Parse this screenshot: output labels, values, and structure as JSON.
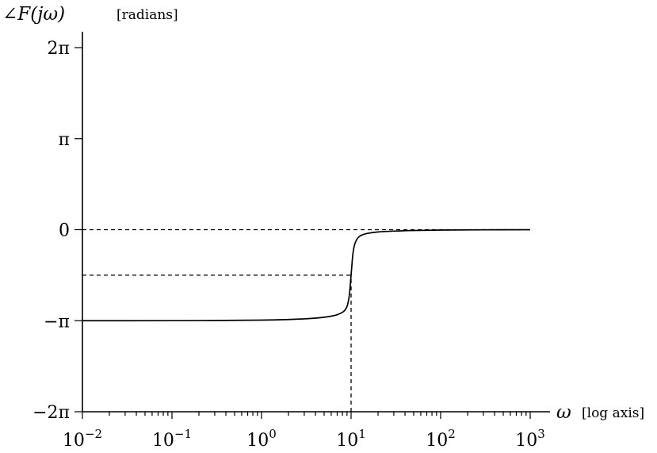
{
  "chart_data": {
    "type": "line",
    "title": "",
    "ylabel_symbol": "∠F(jω)",
    "ylabel_unit": "[radians]",
    "xlabel_symbol": "ω",
    "xlabel_unit": "[log axis]",
    "x_scale": "log",
    "xlim": [
      0.01,
      1000
    ],
    "ylim_radians": [
      -6.2832,
      6.2832
    ],
    "x_ticks": [
      {
        "value": 0.01,
        "base": "10",
        "exp": "−2"
      },
      {
        "value": 0.1,
        "base": "10",
        "exp": "−1"
      },
      {
        "value": 1,
        "base": "10",
        "exp": "0"
      },
      {
        "value": 10,
        "base": "10",
        "exp": "1"
      },
      {
        "value": 100,
        "base": "10",
        "exp": "2"
      },
      {
        "value": 1000,
        "base": "10",
        "exp": "3"
      }
    ],
    "y_ticks": [
      {
        "value": 6.2832,
        "label": "2π"
      },
      {
        "value": 3.1416,
        "label": "π"
      },
      {
        "value": 0,
        "label": "0"
      },
      {
        "value": -3.1416,
        "label": "−π"
      },
      {
        "value": -6.2832,
        "label": "−2π"
      }
    ],
    "series": [
      {
        "style": "solid",
        "x": [
          0.01,
          0.1,
          1,
          2,
          3,
          4,
          5,
          6,
          7,
          8,
          8.5,
          9,
          9.5,
          10,
          10.5,
          11,
          12,
          13,
          15,
          20,
          30,
          50,
          100,
          300,
          1000
        ],
        "y": [
          -3.1414,
          -3.1396,
          -3.1216,
          -3.1008,
          -3.0779,
          -3.0522,
          -3.0221,
          -2.9847,
          -2.9335,
          -2.8521,
          -2.7823,
          -2.6521,
          -2.325,
          -1.5708,
          -0.8143,
          -0.4944,
          -0.2715,
          -0.1935,
          -0.1319,
          -0.078,
          -0.0497,
          -0.0292,
          -0.0144,
          -0.0048,
          -0.0014
        ]
      }
    ],
    "reference_lines": [
      {
        "orientation": "horizontal",
        "y": 0,
        "x_from": 0.01,
        "x_to": 1000,
        "style": "dashed"
      },
      {
        "orientation": "horizontal",
        "y": -1.5708,
        "x_from": 0.01,
        "x_to": 10,
        "style": "dashed"
      },
      {
        "orientation": "vertical",
        "x": 10,
        "y_from": -6.2832,
        "y_to": -1.5708,
        "style": "dashed"
      }
    ],
    "grid": false,
    "legend": "none"
  }
}
